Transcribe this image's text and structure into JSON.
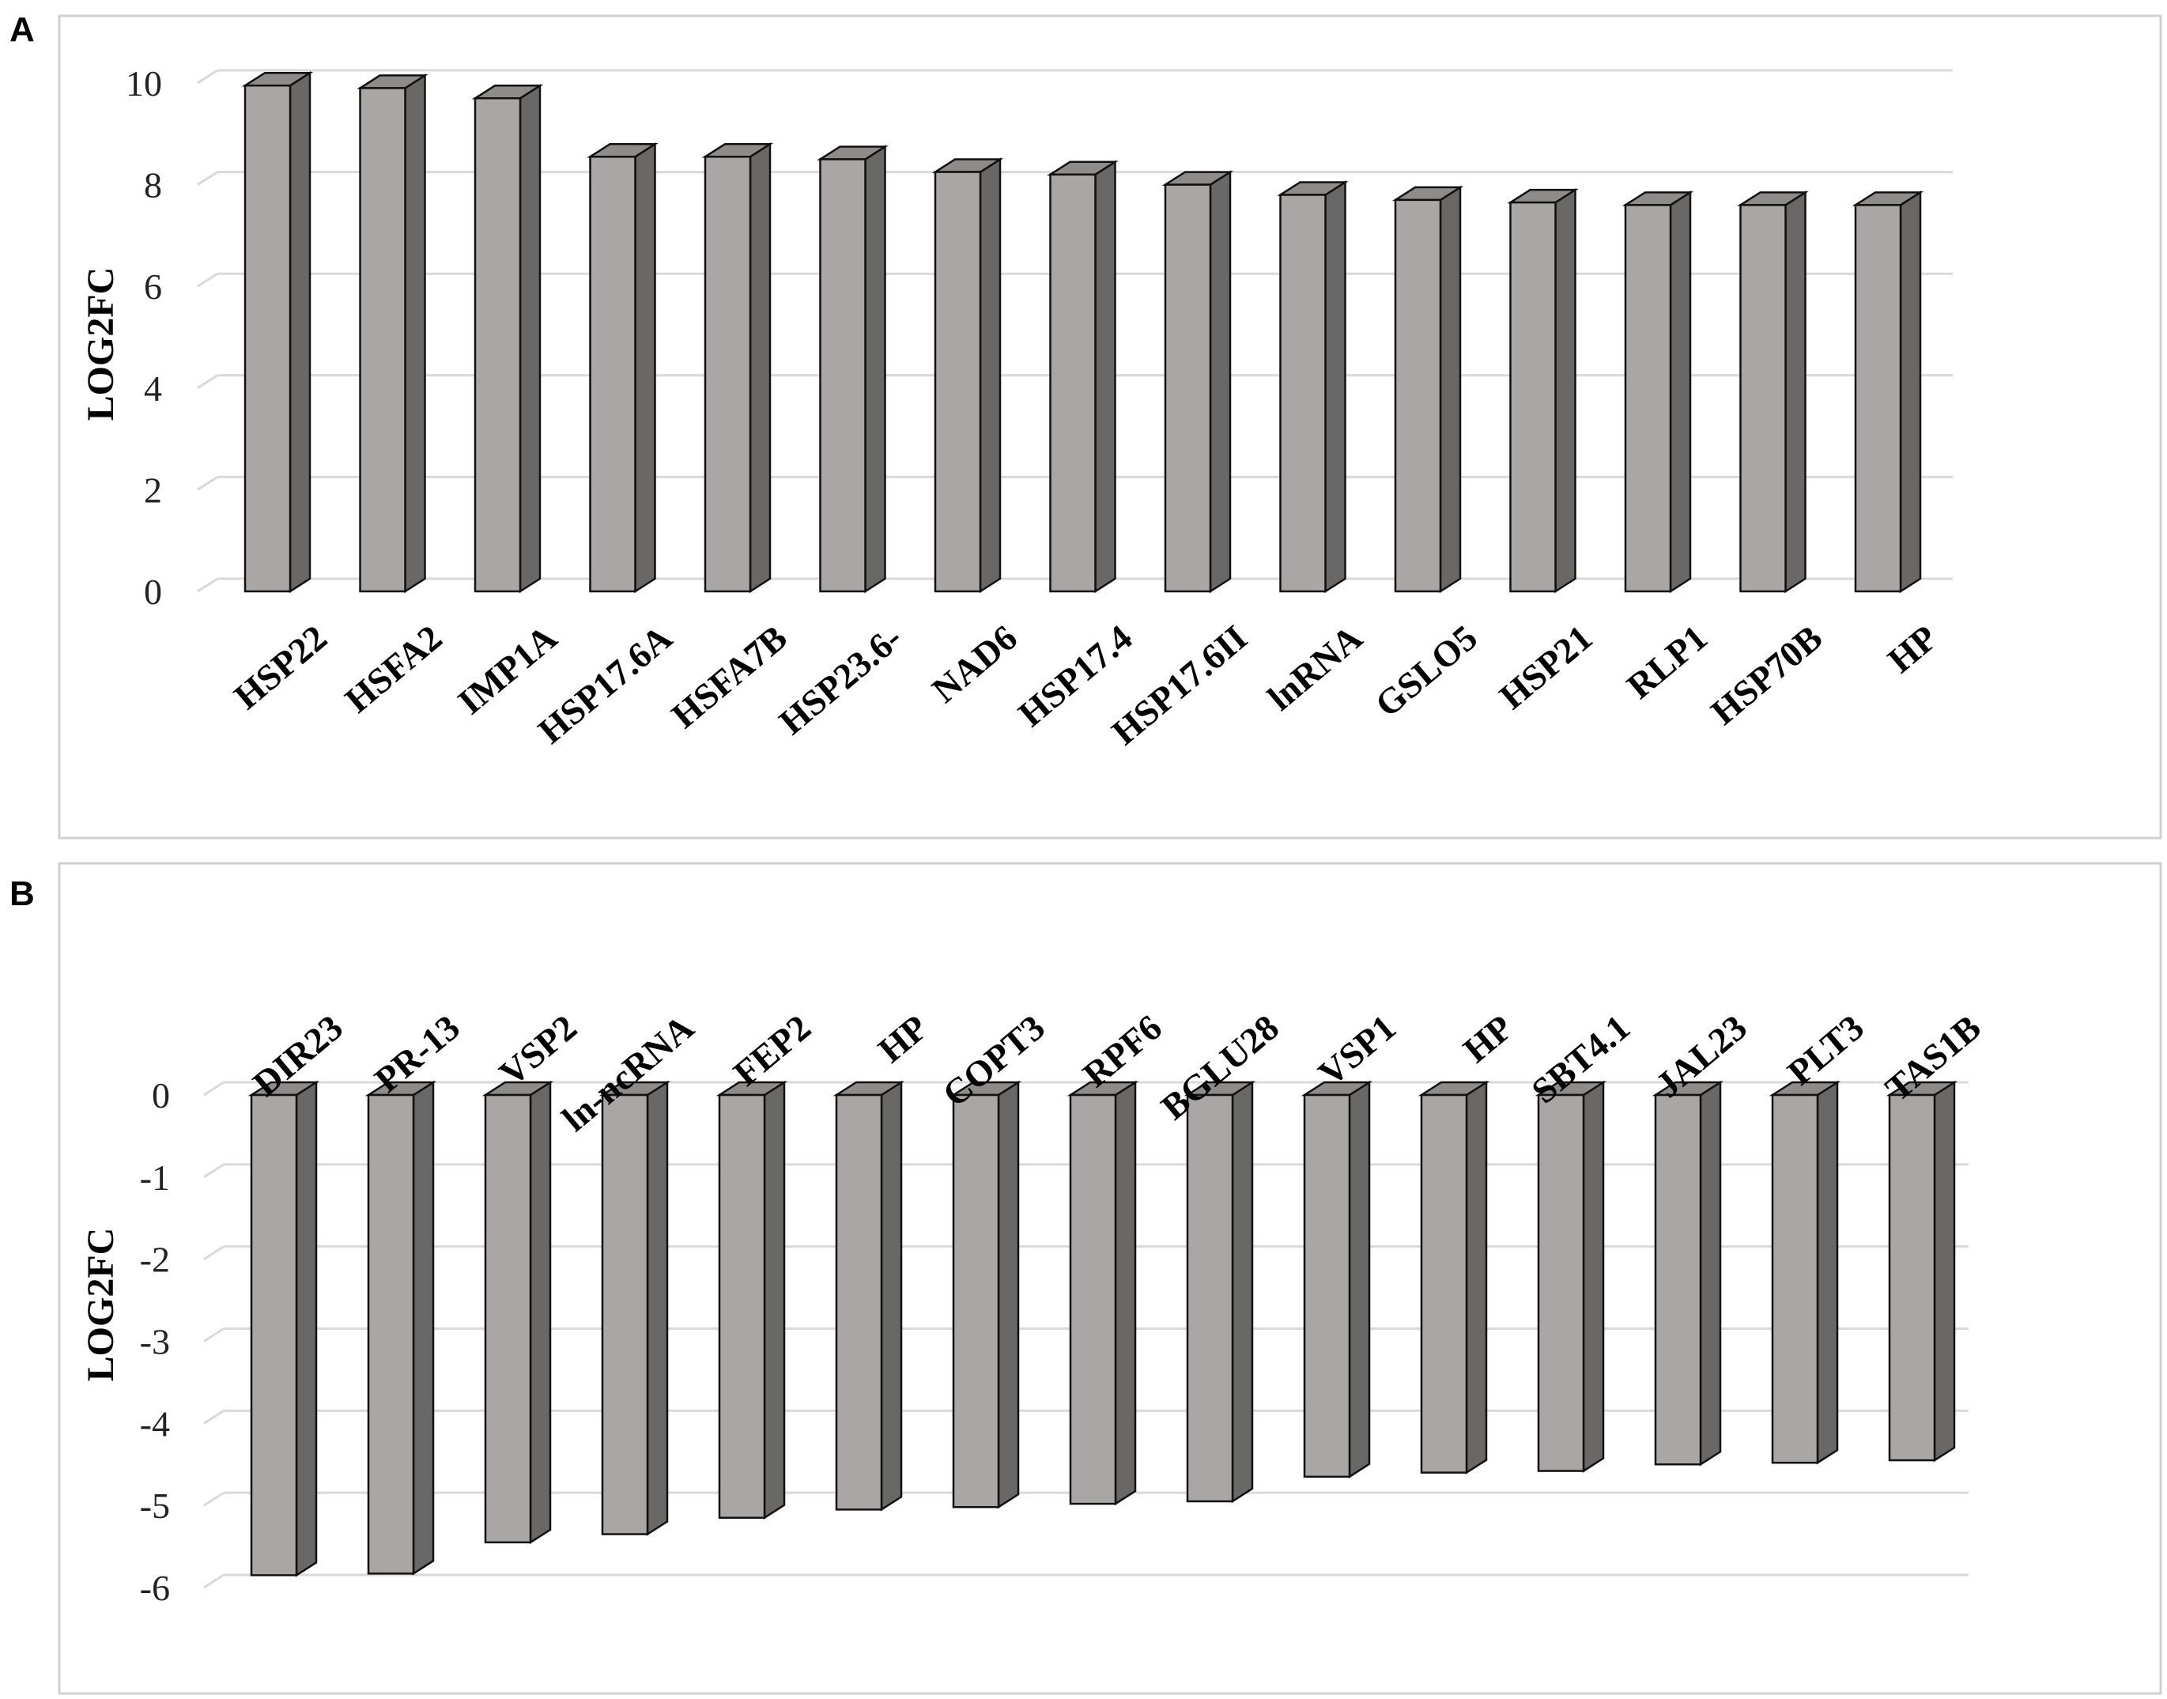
{
  "chart_data": [
    {
      "panel": "A",
      "type": "bar",
      "ylabel": "LOG2FC",
      "ylim": [
        0,
        10
      ],
      "yticks": [
        0,
        2,
        4,
        6,
        8,
        10
      ],
      "categories": [
        "HSP22",
        "HSFA2",
        "IMP1A",
        "HSP17.6A",
        "HSFA7B",
        "HSP23.6-",
        "NAD6",
        "HSP17.4",
        "HSP17.6II",
        "lnRNA",
        "GSLO5",
        "HSP21",
        "RLP1",
        "HSP70B",
        "HP"
      ],
      "values": [
        9.95,
        9.9,
        9.7,
        8.55,
        8.55,
        8.5,
        8.25,
        8.2,
        8.0,
        7.8,
        7.7,
        7.65,
        7.6,
        7.6,
        7.6
      ],
      "grid": true,
      "bar_color": "#aaa6a6",
      "bar_side_color": "#6a6767",
      "bar_top_color": "#8e8b8b"
    },
    {
      "panel": "B",
      "type": "bar",
      "ylabel": "LOG2FC",
      "ylim": [
        -6,
        0
      ],
      "yticks": [
        0,
        -1,
        -2,
        -3,
        -4,
        -5,
        -6
      ],
      "categories": [
        "DIR23",
        "PR-13",
        "VSP2",
        "ln-ncRNA",
        "FEP2",
        "HP",
        "COPT3",
        "RPF6",
        "BGLU28",
        "VSP1",
        "HP",
        "SBT4.1",
        "JAL23",
        "PLT3",
        "TAS1B"
      ],
      "values": [
        -5.85,
        -5.83,
        -5.45,
        -5.35,
        -5.15,
        -5.05,
        -5.02,
        -4.98,
        -4.95,
        -4.65,
        -4.6,
        -4.58,
        -4.5,
        -4.48,
        -4.45
      ],
      "grid": true,
      "bar_color": "#aaa6a6",
      "bar_side_color": "#6a6767",
      "bar_top_color": "#8e8b8b"
    }
  ]
}
